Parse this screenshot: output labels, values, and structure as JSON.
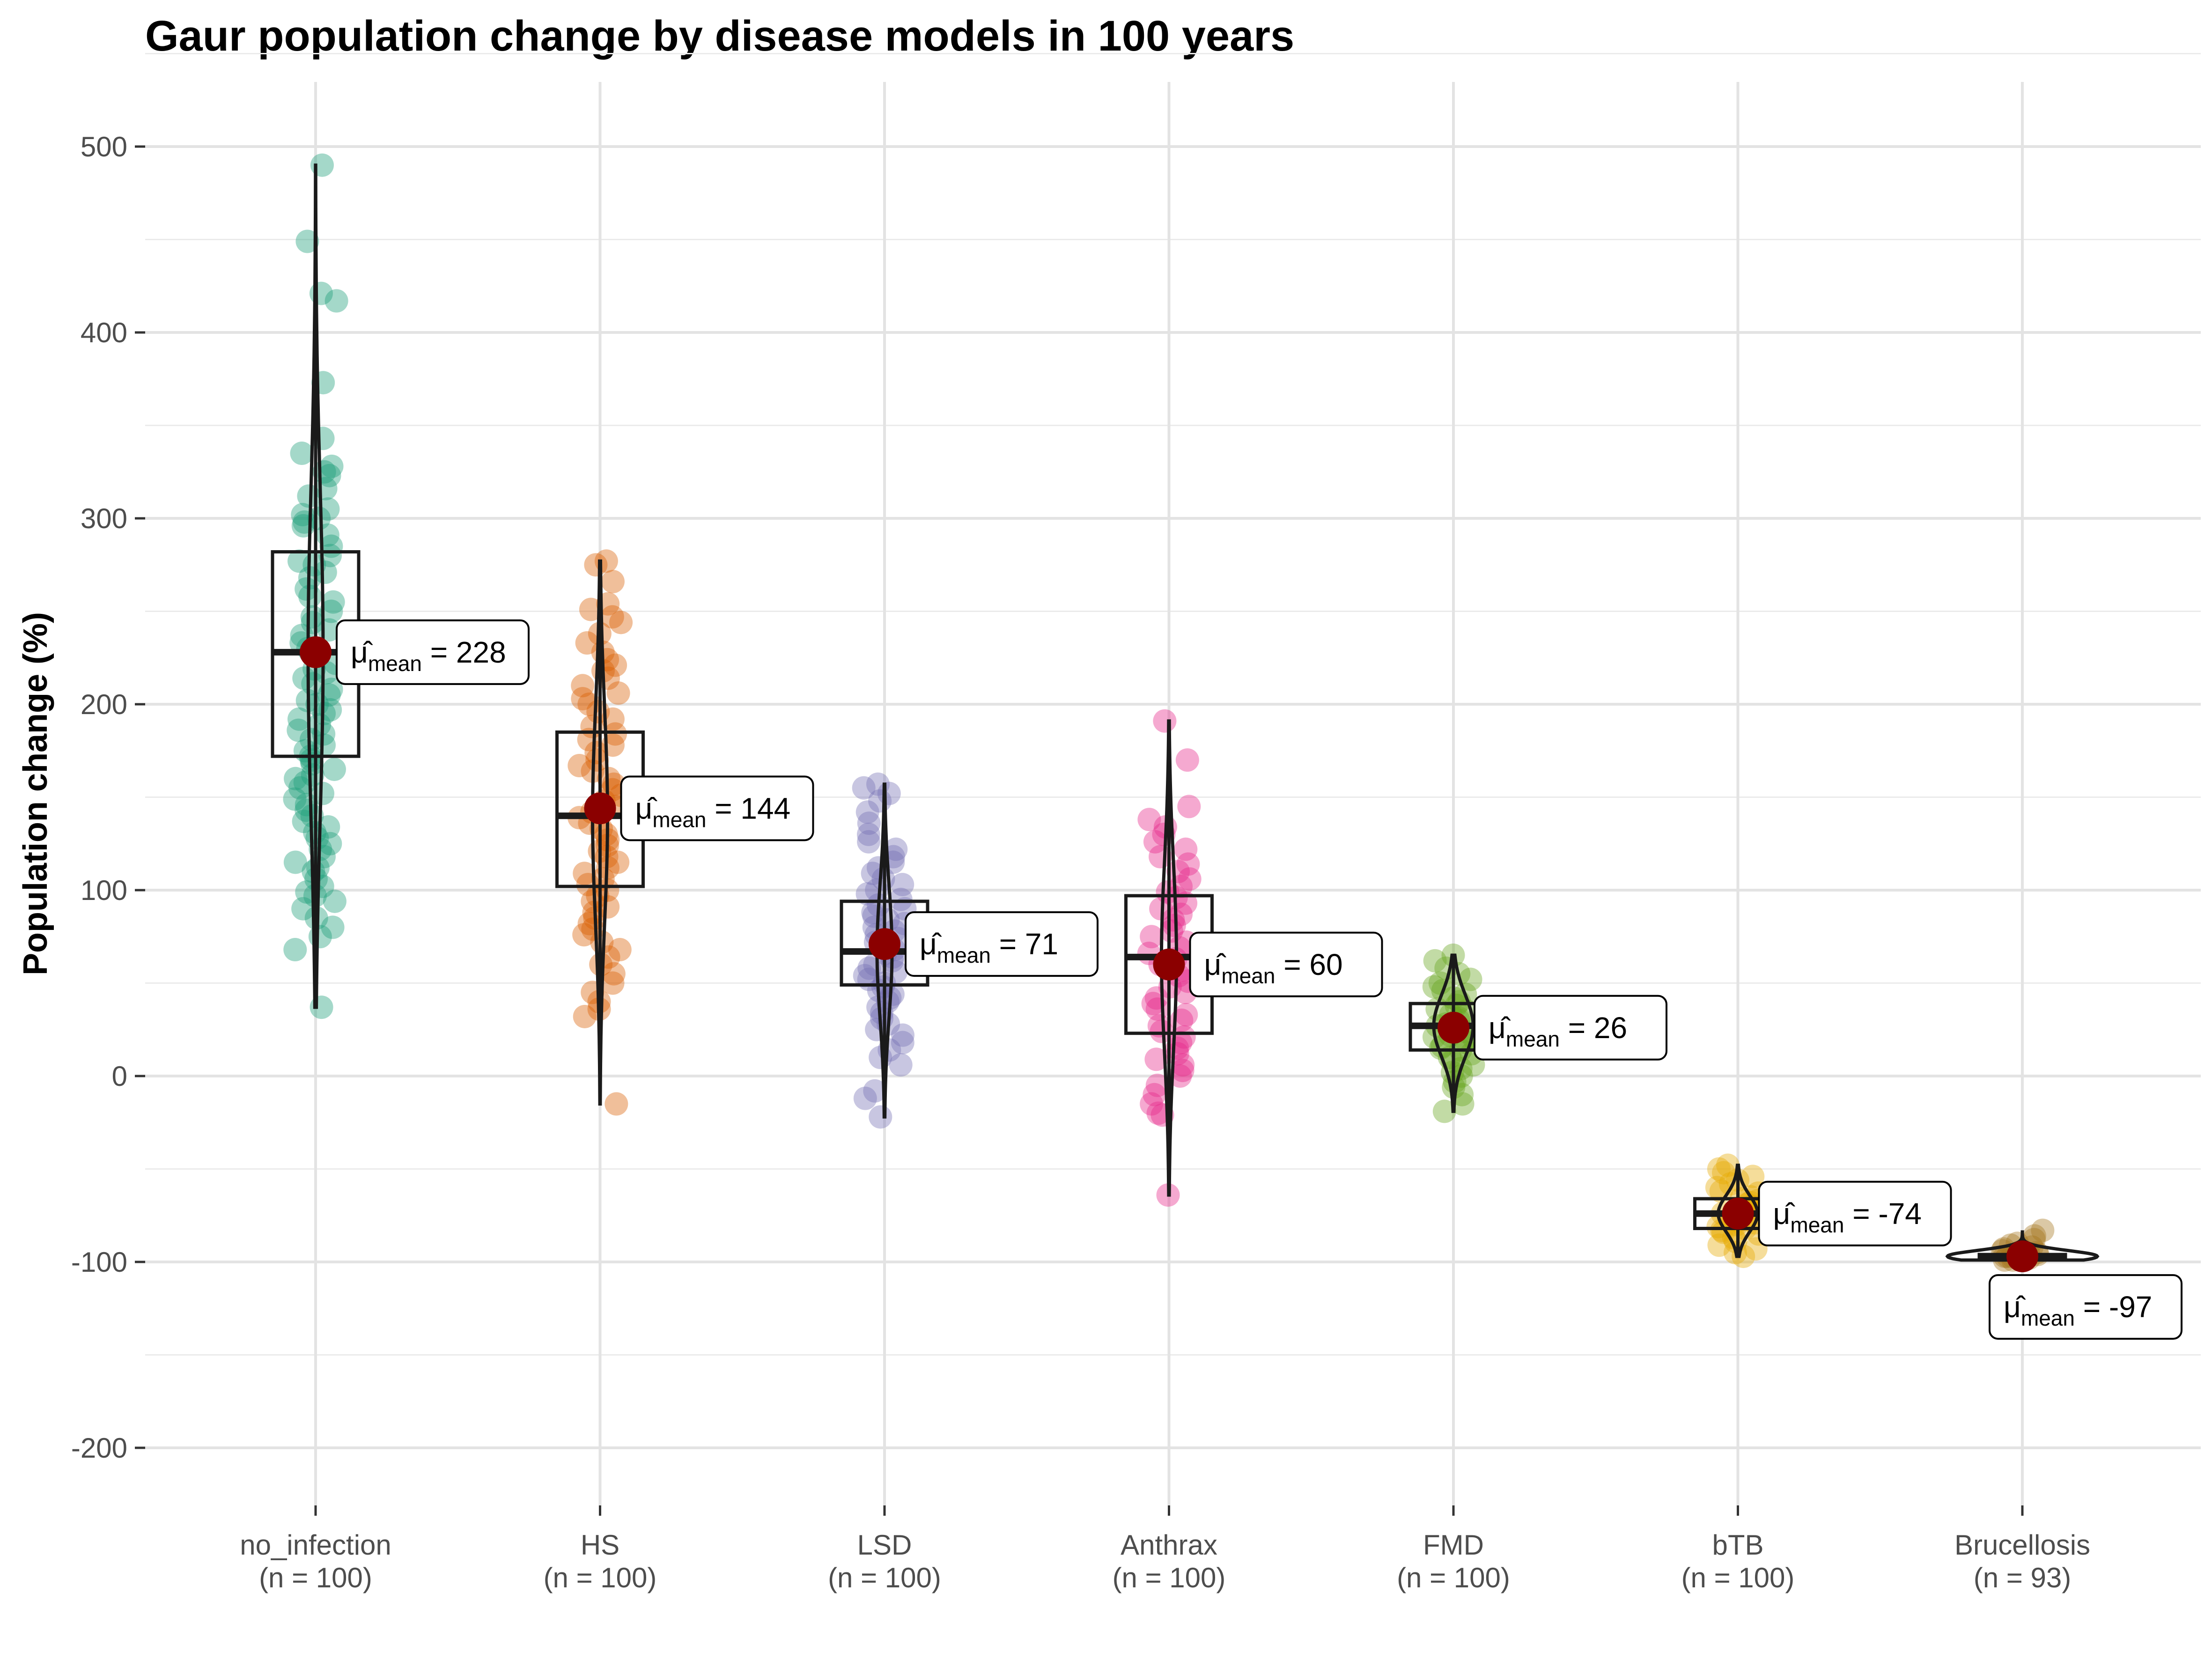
{
  "chart_data": {
    "type": "box-violin-jitter",
    "title": "Gaur population change by disease models in 100 years",
    "xlabel": "",
    "ylabel": "Population change (%)",
    "ylim": [
      -230,
      530
    ],
    "yticks": [
      -200,
      -100,
      0,
      100,
      200,
      300,
      400,
      500
    ],
    "grid": true,
    "mean_label_symbol": "μ̂",
    "mean_label_subscript": "mean",
    "categories": [
      "no_infection",
      "HS",
      "LSD",
      "Anthrax",
      "FMD",
      "bTB",
      "Brucellosis"
    ],
    "n_labels": [
      "(n = 100)",
      "(n = 100)",
      "(n = 100)",
      "(n = 100)",
      "(n = 100)",
      "(n = 100)",
      "(n = 93)"
    ],
    "groups": [
      {
        "name": "no_infection",
        "n": 100,
        "color": "#1b9e77",
        "min": 37,
        "q1": 172,
        "median": 228,
        "q3": 282,
        "max": 490,
        "mean": 228,
        "points": [
          490,
          449,
          421,
          417,
          373,
          343,
          335,
          328,
          325,
          323,
          316,
          312,
          305,
          302,
          300,
          298,
          296,
          291,
          285,
          280,
          277,
          275,
          271,
          268,
          262,
          258,
          255,
          250,
          247,
          244,
          240,
          237,
          233,
          230,
          228,
          226,
          222,
          219,
          217,
          214,
          211,
          208,
          205,
          202,
          200,
          197,
          195,
          192,
          189,
          186,
          184,
          181,
          178,
          175,
          172,
          170,
          168,
          165,
          162,
          160,
          158,
          155,
          152,
          149,
          146,
          143,
          140,
          137,
          134,
          131,
          128,
          125,
          122,
          118,
          115,
          112,
          110,
          106,
          102,
          99,
          97,
          94,
          90,
          85,
          80,
          75,
          68,
          37
        ]
      },
      {
        "name": "HS",
        "n": 100,
        "color": "#d95f02",
        "min": -15,
        "q1": 102,
        "median": 140,
        "q3": 185,
        "max": 277,
        "mean": 144,
        "points": [
          277,
          275,
          266,
          254,
          251,
          247,
          244,
          238,
          233,
          228,
          224,
          221,
          218,
          214,
          210,
          206,
          203,
          200,
          196,
          192,
          188,
          184,
          181,
          178,
          174,
          170,
          167,
          164,
          160,
          157,
          154,
          151,
          148,
          145,
          142,
          139,
          136,
          133,
          130,
          127,
          124,
          121,
          118,
          115,
          112,
          109,
          106,
          103,
          100,
          97,
          94,
          91,
          88,
          85,
          82,
          79,
          76,
          72,
          68,
          64,
          60,
          55,
          50,
          45,
          40,
          36,
          32,
          -15
        ]
      },
      {
        "name": "LSD",
        "n": 100,
        "color": "#7570b3",
        "min": -22,
        "q1": 49,
        "median": 67,
        "q3": 94,
        "max": 157,
        "mean": 71,
        "points": [
          157,
          155,
          152,
          148,
          142,
          136,
          130,
          126,
          122,
          118,
          115,
          112,
          109,
          106,
          103,
          100,
          98,
          95,
          92,
          90,
          88,
          86,
          84,
          82,
          80,
          78,
          76,
          74,
          72,
          70,
          68,
          66,
          64,
          62,
          60,
          58,
          56,
          54,
          52,
          50,
          48,
          46,
          44,
          42,
          40,
          37,
          34,
          31,
          28,
          25,
          22,
          18,
          14,
          10,
          6,
          -8,
          -12,
          -22
        ]
      },
      {
        "name": "Anthrax",
        "n": 100,
        "color": "#e7298a",
        "min": -64,
        "q1": 23,
        "median": 64,
        "q3": 97,
        "max": 191,
        "mean": 60,
        "points": [
          191,
          170,
          145,
          138,
          134,
          130,
          126,
          122,
          118,
          114,
          110,
          106,
          102,
          99,
          96,
          93,
          90,
          87,
          84,
          81,
          78,
          75,
          72,
          69,
          66,
          63,
          60,
          57,
          54,
          51,
          48,
          45,
          42,
          39,
          36,
          33,
          30,
          27,
          24,
          21,
          18,
          15,
          12,
          9,
          6,
          3,
          0,
          -5,
          -10,
          -15,
          -20,
          -21,
          -64
        ]
      },
      {
        "name": "FMD",
        "n": 100,
        "color": "#66a61e",
        "min": -19,
        "q1": 14,
        "median": 27,
        "q3": 39,
        "max": 65,
        "mean": 26,
        "points": [
          65,
          62,
          58,
          55,
          52,
          50,
          48,
          46,
          44,
          42,
          40,
          38,
          36,
          35,
          33,
          31,
          30,
          28,
          27,
          26,
          25,
          24,
          22,
          21,
          20,
          19,
          18,
          16,
          15,
          14,
          12,
          10,
          8,
          6,
          4,
          2,
          0,
          -3,
          -6,
          -10,
          -15,
          -19
        ]
      },
      {
        "name": "bTB",
        "n": 100,
        "color": "#e6ab02",
        "min": -97,
        "q1": -82,
        "median": -74,
        "q3": -66,
        "max": -48,
        "mean": -74,
        "points": [
          -48,
          -50,
          -52,
          -54,
          -56,
          -58,
          -60,
          -62,
          -63,
          -65,
          -66,
          -67,
          -68,
          -69,
          -70,
          -71,
          -72,
          -73,
          -74,
          -75,
          -76,
          -77,
          -78,
          -79,
          -80,
          -81,
          -82,
          -83,
          -84,
          -85,
          -87,
          -89,
          -91,
          -93,
          -95,
          -97
        ]
      },
      {
        "name": "Brucellosis",
        "n": 93,
        "color": "#a6761d",
        "min": -99,
        "q1": -98,
        "median": -97,
        "q3": -96,
        "max": -83,
        "mean": -97,
        "points": [
          -83,
          -86,
          -88,
          -90,
          -91,
          -92,
          -93,
          -94,
          -95,
          -95,
          -96,
          -96,
          -97,
          -97,
          -97,
          -98,
          -98,
          -98,
          -99,
          -99
        ]
      }
    ]
  }
}
